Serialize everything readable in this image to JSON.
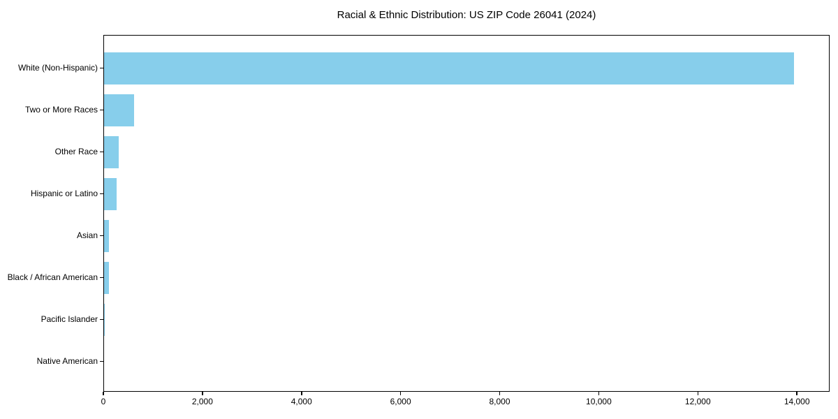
{
  "chart_data": {
    "type": "bar",
    "orientation": "horizontal",
    "title": "Racial & Ethnic Distribution: US ZIP Code 26041 (2024)",
    "xlabel": "",
    "ylabel": "",
    "categories": [
      "White (Non-Hispanic)",
      "Two or More Races",
      "Other Race",
      "Hispanic or Latino",
      "Asian",
      "Black / African American",
      "Pacific Islander",
      "Native American"
    ],
    "values": [
      13930,
      600,
      300,
      255,
      95,
      105,
      12,
      0
    ],
    "xlim": [
      0,
      14660
    ],
    "xticks": [
      0,
      2000,
      4000,
      6000,
      8000,
      10000,
      12000,
      14000
    ],
    "xtick_labels": [
      "0",
      "2,000",
      "4,000",
      "6,000",
      "8,000",
      "10,000",
      "12,000",
      "14,000"
    ],
    "grid": false,
    "legend": null,
    "bar_color": "#87CEEB",
    "axis_color": "#000000",
    "background_color": "#FFFFFF"
  }
}
